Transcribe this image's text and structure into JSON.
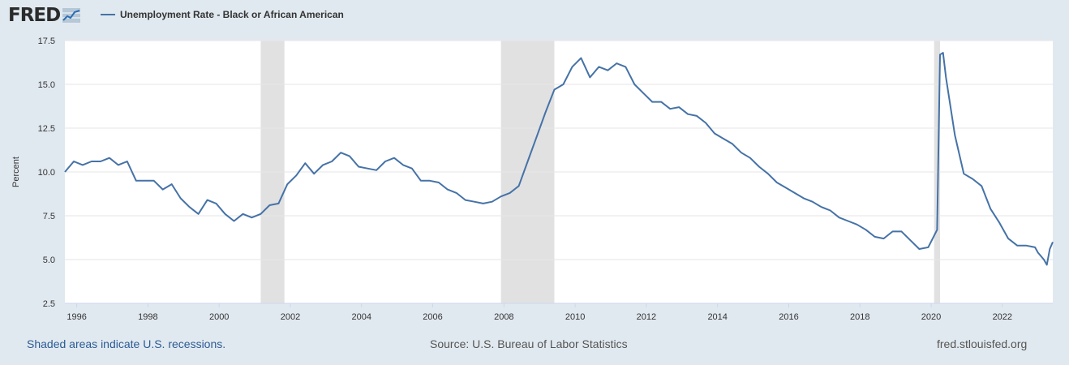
{
  "header": {
    "logo_text": "FRED",
    "logo_icon": "fred-line-chart-icon"
  },
  "footer": {
    "recession_note": "Shaded areas indicate U.S. recessions.",
    "source": "Source: U.S. Bureau of Labor Statistics",
    "site": "fred.stlouisfed.org"
  },
  "colors": {
    "series": "#4572a7",
    "recession_shade": "#e1e1e1",
    "background": "#e1e9f0",
    "plot_background": "#ffffff",
    "gridline": "#e6e6e6"
  },
  "chart_data": {
    "type": "line",
    "title": "",
    "xlabel": "",
    "ylabel": "Percent",
    "ylim": [
      2.5,
      17.5
    ],
    "xlim": [
      "1995-09",
      "2023-06"
    ],
    "grid": "horizontal",
    "legend_placement": "top-left",
    "y_ticks": [
      "2.5",
      "5.0",
      "7.5",
      "10.0",
      "12.5",
      "15.0",
      "17.5"
    ],
    "x_ticks": [
      "1996",
      "1998",
      "2000",
      "2002",
      "2004",
      "2006",
      "2008",
      "2010",
      "2012",
      "2014",
      "2016",
      "2018",
      "2020",
      "2022"
    ],
    "recessions": [
      {
        "start": "2001-03",
        "end": "2001-11"
      },
      {
        "start": "2007-12",
        "end": "2009-06"
      },
      {
        "start": "2020-02",
        "end": "2020-04"
      }
    ],
    "series": [
      {
        "name": "Unemployment Rate - Black or African American",
        "points": [
          [
            "1995-09",
            10.0
          ],
          [
            "1995-12",
            10.6
          ],
          [
            "1996-03",
            10.4
          ],
          [
            "1996-06",
            10.6
          ],
          [
            "1996-09",
            10.6
          ],
          [
            "1996-12",
            10.8
          ],
          [
            "1997-03",
            10.4
          ],
          [
            "1997-06",
            10.6
          ],
          [
            "1997-09",
            9.5
          ],
          [
            "1997-12",
            9.5
          ],
          [
            "1998-03",
            9.5
          ],
          [
            "1998-06",
            9.0
          ],
          [
            "1998-09",
            9.3
          ],
          [
            "1998-12",
            8.5
          ],
          [
            "1999-03",
            8.0
          ],
          [
            "1999-06",
            7.6
          ],
          [
            "1999-09",
            8.4
          ],
          [
            "1999-12",
            8.2
          ],
          [
            "2000-03",
            7.6
          ],
          [
            "2000-06",
            7.2
          ],
          [
            "2000-09",
            7.6
          ],
          [
            "2000-12",
            7.4
          ],
          [
            "2001-03",
            7.6
          ],
          [
            "2001-06",
            8.1
          ],
          [
            "2001-09",
            8.2
          ],
          [
            "2001-12",
            9.3
          ],
          [
            "2002-03",
            9.8
          ],
          [
            "2002-06",
            10.5
          ],
          [
            "2002-09",
            9.9
          ],
          [
            "2002-12",
            10.4
          ],
          [
            "2003-03",
            10.6
          ],
          [
            "2003-06",
            11.1
          ],
          [
            "2003-09",
            10.9
          ],
          [
            "2003-12",
            10.3
          ],
          [
            "2004-03",
            10.2
          ],
          [
            "2004-06",
            10.1
          ],
          [
            "2004-09",
            10.6
          ],
          [
            "2004-12",
            10.8
          ],
          [
            "2005-03",
            10.4
          ],
          [
            "2005-06",
            10.2
          ],
          [
            "2005-09",
            9.5
          ],
          [
            "2005-12",
            9.5
          ],
          [
            "2006-03",
            9.4
          ],
          [
            "2006-06",
            9.0
          ],
          [
            "2006-09",
            8.8
          ],
          [
            "2006-12",
            8.4
          ],
          [
            "2007-03",
            8.3
          ],
          [
            "2007-06",
            8.2
          ],
          [
            "2007-09",
            8.3
          ],
          [
            "2007-12",
            8.6
          ],
          [
            "2008-03",
            8.8
          ],
          [
            "2008-06",
            9.2
          ],
          [
            "2008-09",
            10.6
          ],
          [
            "2008-12",
            12.0
          ],
          [
            "2009-03",
            13.4
          ],
          [
            "2009-06",
            14.7
          ],
          [
            "2009-09",
            15.0
          ],
          [
            "2009-12",
            16.0
          ],
          [
            "2010-03",
            16.5
          ],
          [
            "2010-06",
            15.4
          ],
          [
            "2010-09",
            16.0
          ],
          [
            "2010-12",
            15.8
          ],
          [
            "2011-03",
            16.2
          ],
          [
            "2011-06",
            16.0
          ],
          [
            "2011-09",
            15.0
          ],
          [
            "2011-12",
            14.5
          ],
          [
            "2012-03",
            14.0
          ],
          [
            "2012-06",
            14.0
          ],
          [
            "2012-09",
            13.6
          ],
          [
            "2012-12",
            13.7
          ],
          [
            "2013-03",
            13.3
          ],
          [
            "2013-06",
            13.2
          ],
          [
            "2013-09",
            12.8
          ],
          [
            "2013-12",
            12.2
          ],
          [
            "2014-03",
            11.9
          ],
          [
            "2014-06",
            11.6
          ],
          [
            "2014-09",
            11.1
          ],
          [
            "2014-12",
            10.8
          ],
          [
            "2015-03",
            10.3
          ],
          [
            "2015-06",
            9.9
          ],
          [
            "2015-09",
            9.4
          ],
          [
            "2015-12",
            9.1
          ],
          [
            "2016-03",
            8.8
          ],
          [
            "2016-06",
            8.5
          ],
          [
            "2016-09",
            8.3
          ],
          [
            "2016-12",
            8.0
          ],
          [
            "2017-03",
            7.8
          ],
          [
            "2017-06",
            7.4
          ],
          [
            "2017-09",
            7.2
          ],
          [
            "2017-12",
            7.0
          ],
          [
            "2018-03",
            6.7
          ],
          [
            "2018-06",
            6.3
          ],
          [
            "2018-09",
            6.2
          ],
          [
            "2018-12",
            6.6
          ],
          [
            "2019-03",
            6.6
          ],
          [
            "2019-06",
            6.1
          ],
          [
            "2019-09",
            5.6
          ],
          [
            "2019-12",
            5.7
          ],
          [
            "2020-03",
            6.7
          ],
          [
            "2020-04",
            16.7
          ],
          [
            "2020-05",
            16.8
          ],
          [
            "2020-06",
            15.4
          ],
          [
            "2020-09",
            12.1
          ],
          [
            "2020-12",
            9.9
          ],
          [
            "2021-03",
            9.6
          ],
          [
            "2021-06",
            9.2
          ],
          [
            "2021-09",
            7.9
          ],
          [
            "2021-12",
            7.1
          ],
          [
            "2022-03",
            6.2
          ],
          [
            "2022-06",
            5.8
          ],
          [
            "2022-09",
            5.8
          ],
          [
            "2022-12",
            5.7
          ],
          [
            "2023-01",
            5.4
          ],
          [
            "2023-03",
            5.0
          ],
          [
            "2023-04",
            4.7
          ],
          [
            "2023-05",
            5.6
          ],
          [
            "2023-06",
            6.0
          ]
        ]
      }
    ]
  }
}
